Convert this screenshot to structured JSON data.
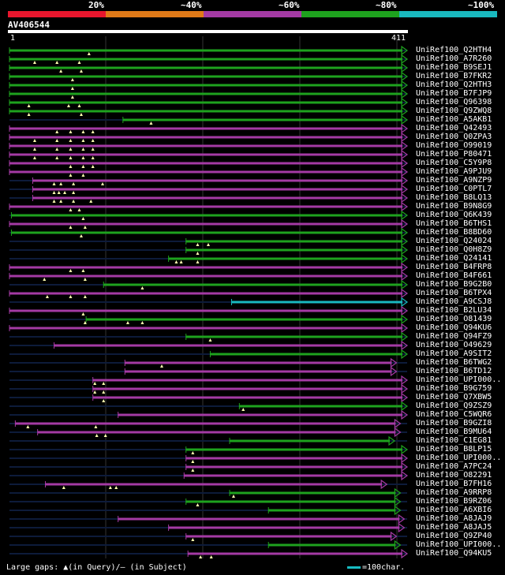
{
  "header": {
    "percent_labels": [
      "20%",
      "~40%",
      "~60%",
      "~80%",
      "~100%"
    ],
    "scale_colors": [
      "#e8162d",
      "#e07a18",
      "#a43aa4",
      "#1ea21e",
      "#19b9bf"
    ],
    "accession": "AV406544",
    "ruler_start": "1",
    "ruler_end": "411"
  },
  "hits": [
    {
      "name": "UniRef100_Q2HTH4",
      "color": "green",
      "start": 1,
      "end": 411,
      "ins": [
        83
      ]
    },
    {
      "name": "UniRef100_A7R260",
      "color": "green",
      "start": 1,
      "end": 411,
      "ins": [
        27,
        50,
        73
      ]
    },
    {
      "name": "UniRef100_B9SEJ1",
      "color": "green",
      "start": 1,
      "end": 411,
      "ins": [
        54,
        75
      ]
    },
    {
      "name": "UniRef100_B7FKR2",
      "color": "green",
      "start": 1,
      "end": 411,
      "ins": [
        66
      ]
    },
    {
      "name": "UniRef100_Q2HTH3",
      "color": "green",
      "start": 1,
      "end": 411,
      "ins": [
        66
      ]
    },
    {
      "name": "UniRef100_B7FJP9",
      "color": "green",
      "start": 1,
      "end": 411,
      "ins": [
        66
      ]
    },
    {
      "name": "UniRef100_Q96398",
      "color": "green",
      "start": 1,
      "end": 411,
      "ins": [
        21,
        62,
        73
      ]
    },
    {
      "name": "UniRef100_Q9ZWQ8",
      "color": "green",
      "start": 1,
      "end": 411,
      "ins": [
        21,
        75
      ]
    },
    {
      "name": "UniRef100_A5AKB1",
      "color": "green",
      "start": 118,
      "end": 411,
      "ins": [
        147
      ]
    },
    {
      "name": "UniRef100_Q42493",
      "color": "purple",
      "start": 1,
      "end": 411,
      "ins": [
        50,
        64,
        77,
        87
      ]
    },
    {
      "name": "UniRef100_Q0ZPA3",
      "color": "purple",
      "start": 1,
      "end": 411,
      "ins": [
        27,
        50,
        64,
        77,
        87
      ]
    },
    {
      "name": "UniRef100_O99019",
      "color": "purple",
      "start": 1,
      "end": 411,
      "ins": [
        27,
        50,
        64,
        77,
        87
      ]
    },
    {
      "name": "UniRef100_P80471",
      "color": "purple",
      "start": 1,
      "end": 411,
      "ins": [
        27,
        50,
        64,
        77,
        87
      ]
    },
    {
      "name": "UniRef100_C5Y9P8",
      "color": "purple",
      "start": 1,
      "end": 411,
      "ins": [
        64,
        77,
        87
      ]
    },
    {
      "name": "UniRef100_A9PJU9",
      "color": "purple",
      "start": 1,
      "end": 411,
      "ins": [
        64,
        77
      ]
    },
    {
      "name": "UniRef100_A9NZP9",
      "color": "purple",
      "start": 25,
      "end": 411,
      "ins": [
        47,
        54,
        67,
        97
      ]
    },
    {
      "name": "UniRef100_C0PTL7",
      "color": "purple",
      "start": 25,
      "end": 411,
      "ins": [
        47,
        52,
        58,
        67
      ]
    },
    {
      "name": "UniRef100_B8LQ13",
      "color": "purple",
      "start": 25,
      "end": 411,
      "ins": [
        47,
        54,
        67,
        85
      ]
    },
    {
      "name": "UniRef100_B9N8G9",
      "color": "purple",
      "start": 1,
      "end": 411,
      "ins": [
        64,
        73
      ]
    },
    {
      "name": "UniRef100_Q6K439",
      "color": "green",
      "start": 3,
      "end": 411,
      "ins": [
        77
      ]
    },
    {
      "name": "UniRef100_B6THS1",
      "color": "purple",
      "start": 1,
      "end": 411,
      "ins": [
        64,
        79
      ]
    },
    {
      "name": "UniRef100_B8BD60",
      "color": "green",
      "start": 3,
      "end": 411,
      "ins": [
        75
      ]
    },
    {
      "name": "UniRef100_Q24024",
      "color": "green",
      "start": 183,
      "end": 411,
      "ins": [
        195,
        206
      ]
    },
    {
      "name": "UniRef100_Q0H8Z9",
      "color": "green",
      "start": 183,
      "end": 411,
      "ins": [
        195
      ]
    },
    {
      "name": "UniRef100_Q24141",
      "color": "green",
      "start": 165,
      "end": 411,
      "ins": [
        173,
        178,
        195
      ]
    },
    {
      "name": "UniRef100_B4FRP8",
      "color": "purple",
      "start": 1,
      "end": 411,
      "ins": [
        64,
        77
      ]
    },
    {
      "name": "UniRef100_B4F661",
      "color": "purple",
      "start": 1,
      "end": 411,
      "ins": [
        37,
        79
      ]
    },
    {
      "name": "UniRef100_B9G2B0",
      "color": "green",
      "start": 98,
      "end": 411,
      "ins": [
        138
      ]
    },
    {
      "name": "UniRef100_B6TPX4",
      "color": "purple",
      "start": 1,
      "end": 411,
      "ins": [
        40,
        64,
        79
      ]
    },
    {
      "name": "UniRef100_A9CSJ8",
      "color": "cyan",
      "start": 230,
      "end": 411,
      "ins": []
    },
    {
      "name": "UniRef100_B2LU34",
      "color": "purple",
      "start": 1,
      "end": 411,
      "ins": [
        77
      ]
    },
    {
      "name": "UniRef100_O81439",
      "color": "green",
      "start": 80,
      "end": 411,
      "ins": [
        79,
        123,
        138
      ]
    },
    {
      "name": "UniRef100_Q94KU6",
      "color": "purple",
      "start": 1,
      "end": 411,
      "ins": []
    },
    {
      "name": "UniRef100_Q94FZ9",
      "color": "green",
      "start": 183,
      "end": 411,
      "ins": [
        208
      ]
    },
    {
      "name": "UniRef100_O49629",
      "color": "purple",
      "start": 47,
      "end": 411,
      "ins": []
    },
    {
      "name": "UniRef100_A9SIT2",
      "color": "green",
      "start": 208,
      "end": 411,
      "ins": []
    },
    {
      "name": "UniRef100_B6TWG2",
      "color": "purple",
      "start": 120,
      "end": 400,
      "ins": [
        158
      ]
    },
    {
      "name": "UniRef100_B6TD12",
      "color": "purple",
      "start": 120,
      "end": 400,
      "ins": []
    },
    {
      "name": "UniRef100_UPI000..",
      "color": "purple",
      "start": 87,
      "end": 411,
      "ins": [
        89,
        98
      ]
    },
    {
      "name": "UniRef100_B9G759",
      "color": "purple",
      "start": 87,
      "end": 411,
      "ins": [
        89,
        98
      ]
    },
    {
      "name": "UniRef100_Q7XBW5",
      "color": "purple",
      "start": 87,
      "end": 411,
      "ins": [
        98
      ]
    },
    {
      "name": "UniRef100_Q9ZSZ9",
      "color": "green",
      "start": 238,
      "end": 411,
      "ins": [
        242
      ]
    },
    {
      "name": "UniRef100_C5WQR6",
      "color": "purple",
      "start": 113,
      "end": 411,
      "ins": []
    },
    {
      "name": "UniRef100_B9GZI8",
      "color": "purple",
      "start": 7,
      "end": 404,
      "ins": [
        20,
        90
      ]
    },
    {
      "name": "UniRef100_B9MU64",
      "color": "purple",
      "start": 30,
      "end": 404,
      "ins": [
        91,
        100
      ]
    },
    {
      "name": "UniRef100_C1EG81",
      "color": "green",
      "start": 228,
      "end": 398,
      "ins": []
    },
    {
      "name": "UniRef100_B8LP15",
      "color": "green",
      "start": 183,
      "end": 411,
      "ins": [
        190
      ]
    },
    {
      "name": "UniRef100_UPI000..",
      "color": "purple",
      "start": 183,
      "end": 411,
      "ins": [
        190
      ]
    },
    {
      "name": "UniRef100_A7PC24",
      "color": "purple",
      "start": 183,
      "end": 411,
      "ins": [
        190
      ]
    },
    {
      "name": "UniRef100_O82291",
      "color": "purple",
      "start": 181,
      "end": 411,
      "ins": []
    },
    {
      "name": "UniRef100_B7FH16",
      "color": "purple",
      "start": 38,
      "end": 390,
      "ins": [
        57,
        105,
        111
      ]
    },
    {
      "name": "UniRef100_A9RRP8",
      "color": "green",
      "start": 228,
      "end": 404,
      "ins": [
        232
      ]
    },
    {
      "name": "UniRef100_B9RZ06",
      "color": "green",
      "start": 183,
      "end": 404,
      "ins": [
        195
      ]
    },
    {
      "name": "UniRef100_A6XBI6",
      "color": "green",
      "start": 268,
      "end": 404,
      "ins": []
    },
    {
      "name": "UniRef100_A8JAJ9",
      "color": "purple",
      "start": 113,
      "end": 408,
      "ins": []
    },
    {
      "name": "UniRef100_A8JAJ5",
      "color": "purple",
      "start": 165,
      "end": 408,
      "ins": []
    },
    {
      "name": "UniRef100_Q9ZP40",
      "color": "purple",
      "start": 183,
      "end": 400,
      "ins": [
        190
      ]
    },
    {
      "name": "UniRef100_UPI000..",
      "color": "green",
      "start": 268,
      "end": 404,
      "ins": []
    },
    {
      "name": "UniRef100_Q94KU5",
      "color": "purple",
      "start": 185,
      "end": 411,
      "ins": [
        198,
        209
      ]
    }
  ],
  "footer": {
    "gaps_text": "Large gaps: ▲(in Query)/– (in Subject)",
    "key_text": "=100char."
  }
}
